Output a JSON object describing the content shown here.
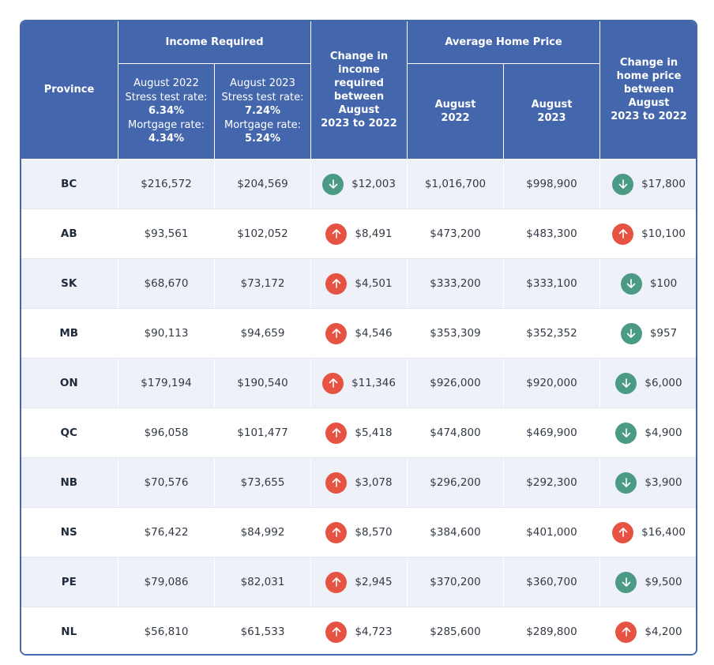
{
  "header": {
    "province": "Province",
    "income_required": "Income Required",
    "aug2022": {
      "label": "August 2022",
      "stress_label": "Stress test rate:",
      "stress_value": "6.34%",
      "mortgage_label": "Mortgage rate:",
      "mortgage_value": "4.34%"
    },
    "aug2023": {
      "label": "August 2023",
      "stress_label": "Stress test rate:",
      "stress_value": "7.24%",
      "mortgage_label": "Mortgage rate:",
      "mortgage_value": "5.24%"
    },
    "change_income": [
      "Change in",
      "income",
      "required",
      "between",
      "August",
      "2023 to 2022"
    ],
    "avg_home_price": "Average Home Price",
    "price_aug2022": [
      "August",
      "2022"
    ],
    "price_aug2023": [
      "August",
      "2023"
    ],
    "change_price": [
      "Change in",
      "home price",
      "between",
      "August",
      "2023 to 2022"
    ]
  },
  "colors": {
    "header_bg": "#4466ac",
    "up": "#e65342",
    "down": "#4b9a86"
  },
  "rows": [
    {
      "province": "BC",
      "income_2022": "$216,572",
      "income_2023": "$204,569",
      "income_dir": "down",
      "income_change": "$12,003",
      "price_2022": "$1,016,700",
      "price_2023": "$998,900",
      "price_dir": "down",
      "price_change": "$17,800"
    },
    {
      "province": "AB",
      "income_2022": "$93,561",
      "income_2023": "$102,052",
      "income_dir": "up",
      "income_change": "$8,491",
      "price_2022": "$473,200",
      "price_2023": "$483,300",
      "price_dir": "up",
      "price_change": "$10,100"
    },
    {
      "province": "SK",
      "income_2022": "$68,670",
      "income_2023": "$73,172",
      "income_dir": "up",
      "income_change": "$4,501",
      "price_2022": "$333,200",
      "price_2023": "$333,100",
      "price_dir": "down",
      "price_change": "$100"
    },
    {
      "province": "MB",
      "income_2022": "$90,113",
      "income_2023": "$94,659",
      "income_dir": "up",
      "income_change": "$4,546",
      "price_2022": "$353,309",
      "price_2023": "$352,352",
      "price_dir": "down",
      "price_change": "$957"
    },
    {
      "province": "ON",
      "income_2022": "$179,194",
      "income_2023": "$190,540",
      "income_dir": "up",
      "income_change": "$11,346",
      "price_2022": "$926,000",
      "price_2023": "$920,000",
      "price_dir": "down",
      "price_change": "$6,000"
    },
    {
      "province": "QC",
      "income_2022": "$96,058",
      "income_2023": "$101,477",
      "income_dir": "up",
      "income_change": "$5,418",
      "price_2022": "$474,800",
      "price_2023": "$469,900",
      "price_dir": "down",
      "price_change": "$4,900"
    },
    {
      "province": "NB",
      "income_2022": "$70,576",
      "income_2023": "$73,655",
      "income_dir": "up",
      "income_change": "$3,078",
      "price_2022": "$296,200",
      "price_2023": "$292,300",
      "price_dir": "down",
      "price_change": "$3,900"
    },
    {
      "province": "NS",
      "income_2022": "$76,422",
      "income_2023": "$84,992",
      "income_dir": "up",
      "income_change": "$8,570",
      "price_2022": "$384,600",
      "price_2023": "$401,000",
      "price_dir": "up",
      "price_change": "$16,400"
    },
    {
      "province": "PE",
      "income_2022": "$79,086",
      "income_2023": "$82,031",
      "income_dir": "up",
      "income_change": "$2,945",
      "price_2022": "$370,200",
      "price_2023": "$360,700",
      "price_dir": "down",
      "price_change": "$9,500"
    },
    {
      "province": "NL",
      "income_2022": "$56,810",
      "income_2023": "$61,533",
      "income_dir": "up",
      "income_change": "$4,723",
      "price_2022": "$285,600",
      "price_2023": "$289,800",
      "price_dir": "up",
      "price_change": "$4,200"
    }
  ]
}
